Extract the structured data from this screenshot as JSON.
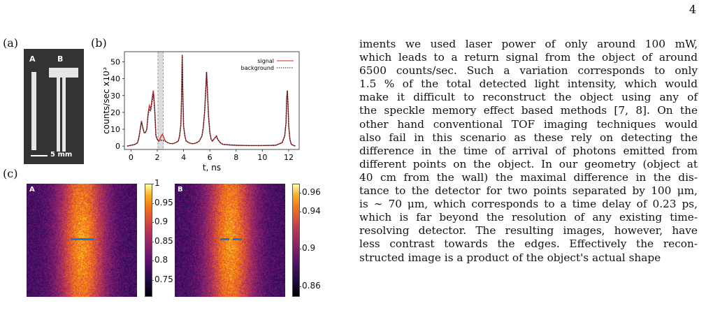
{
  "page": {
    "number": "4"
  },
  "panels": {
    "a": "(a)",
    "b": "(b)",
    "c": "(c)"
  },
  "photo": {
    "label_a": "A",
    "label_b": "B",
    "scale": "5 mm"
  },
  "chart_data": {
    "type": "line",
    "xlabel": "t, ns",
    "ylabel": "counts/sec x10",
    "ylabel_exp": "3",
    "xlim": [
      -0.5,
      12.8
    ],
    "ylim": [
      -2,
      56
    ],
    "xticks": [
      0,
      2,
      4,
      6,
      8,
      10,
      12
    ],
    "yticks": [
      0,
      10,
      20,
      30,
      40,
      50
    ],
    "legend_position": "top-right",
    "series": [
      {
        "name": "signal",
        "color": "#d62728",
        "style": "solid",
        "x": [
          -0.3,
          0.3,
          0.5,
          0.6,
          0.7,
          0.8,
          0.9,
          1.0,
          1.1,
          1.2,
          1.3,
          1.4,
          1.5,
          1.6,
          1.7,
          1.8,
          1.9,
          2.0,
          2.1,
          2.2,
          2.3,
          2.4,
          2.5,
          2.6,
          2.8,
          3.0,
          3.2,
          3.4,
          3.6,
          3.7,
          3.8,
          3.85,
          3.9,
          3.95,
          4.0,
          4.1,
          4.2,
          4.4,
          4.6,
          4.8,
          5.0,
          5.2,
          5.4,
          5.5,
          5.6,
          5.7,
          5.75,
          5.8,
          5.9,
          6.0,
          6.1,
          6.2,
          6.3,
          6.4,
          6.5,
          6.6,
          6.7,
          6.8,
          7.0,
          7.5,
          8.0,
          9.0,
          10.0,
          11.0,
          11.5,
          11.7,
          11.8,
          11.85,
          11.9,
          11.95,
          12.0,
          12.1,
          12.2,
          12.5
        ],
        "y": [
          0,
          1,
          2,
          5,
          10,
          15,
          11,
          8,
          8,
          10,
          19,
          24,
          22,
          28,
          33,
          23,
          6,
          4,
          3,
          4,
          6,
          7,
          5,
          3,
          2,
          1.5,
          1.5,
          2,
          3,
          6,
          13,
          30,
          54,
          30,
          12,
          6,
          3,
          2,
          1.5,
          1.5,
          2,
          3,
          6,
          11,
          20,
          35,
          44,
          36,
          18,
          8,
          4,
          3,
          4,
          5,
          6,
          4,
          3,
          2,
          1,
          0.7,
          0.5,
          0.3,
          0.3,
          0.5,
          2,
          6,
          14,
          28,
          33,
          25,
          12,
          4,
          1,
          0
        ]
      },
      {
        "name": "background",
        "color": "#222222",
        "style": "dotted",
        "x": [
          -0.3,
          0.3,
          0.5,
          0.6,
          0.7,
          0.8,
          0.9,
          1.0,
          1.1,
          1.2,
          1.3,
          1.4,
          1.5,
          1.6,
          1.7,
          1.8,
          1.9,
          2.0,
          2.1,
          2.2,
          2.3,
          2.4,
          2.5,
          2.6,
          2.8,
          3.0,
          3.2,
          3.4,
          3.6,
          3.7,
          3.8,
          3.85,
          3.9,
          3.95,
          4.0,
          4.1,
          4.2,
          4.4,
          4.6,
          4.8,
          5.0,
          5.2,
          5.4,
          5.5,
          5.6,
          5.7,
          5.75,
          5.8,
          5.9,
          6.0,
          6.1,
          6.2,
          6.3,
          6.4,
          6.5,
          6.6,
          6.7,
          6.8,
          7.0,
          7.5,
          8.0,
          9.0,
          10.0,
          11.0,
          11.5,
          11.7,
          11.8,
          11.85,
          11.9,
          11.95,
          12.0,
          12.1,
          12.2,
          12.5
        ],
        "y": [
          0,
          1,
          2,
          5,
          10,
          14,
          11,
          8,
          8,
          10,
          18,
          22,
          21,
          26,
          31,
          22,
          6,
          4,
          3,
          3,
          3.5,
          3.5,
          3,
          3,
          2,
          1.5,
          1.5,
          2,
          3,
          6,
          13,
          30,
          54,
          30,
          12,
          6,
          3,
          2,
          1.5,
          1.5,
          2,
          3,
          6,
          11,
          20,
          35,
          44,
          36,
          18,
          8,
          4,
          3,
          4,
          5,
          6,
          4,
          3,
          2,
          1,
          0.7,
          0.5,
          0.3,
          0.3,
          0.5,
          2,
          6,
          14,
          28,
          33,
          25,
          12,
          4,
          1,
          0
        ]
      }
    ],
    "shaded_window": [
      2.05,
      2.45
    ]
  },
  "heatmaps": {
    "a": {
      "label": "A",
      "ticks": [
        "1",
        "0.95",
        "0.9",
        "0.85",
        "0.8",
        "0.75"
      ],
      "tick_values": [
        1,
        0.95,
        0.9,
        0.85,
        0.8,
        0.75
      ],
      "range": [
        0.71,
        1.0
      ]
    },
    "b": {
      "label": "B",
      "ticks": [
        "0.96",
        "0.94",
        "0.9",
        "0.86"
      ],
      "tick_values": [
        0.96,
        0.94,
        0.9,
        0.86
      ],
      "range": [
        0.85,
        0.97
      ]
    }
  },
  "colors": {
    "marker": "#1f77d4",
    "photo_bg": "#333333"
  },
  "body_lines": [
    "iments we used laser power of only around 100 mW,",
    "which leads to a return signal from the object of around",
    "6500 counts/sec. Such a variation corresponds to only",
    "1.5 % of the total detected light intensity, which would",
    "make it difficult to reconstruct the object using any of",
    "the speckle memory effect based methods [7, 8]. On the",
    "other hand conventional TOF imaging techniques would",
    "also fail in this scenario as these rely on detecting the",
    "difference in the time of arrival of photons emitted from",
    "different points on the object. In our geometry (object at",
    "40 cm from the wall) the maximal difference in the dis-",
    "tance to the detector for two points separated by 100 μm,",
    "is ∼ 70 μm, which corresponds to a time delay of 0.23 ps,",
    "which is far beyond the resolution of any existing time-",
    "resolving detector. The resulting images, however, have",
    "less contrast towards the edges. Effectively the recon-",
    "structed image is a product of the object's actual shape"
  ]
}
